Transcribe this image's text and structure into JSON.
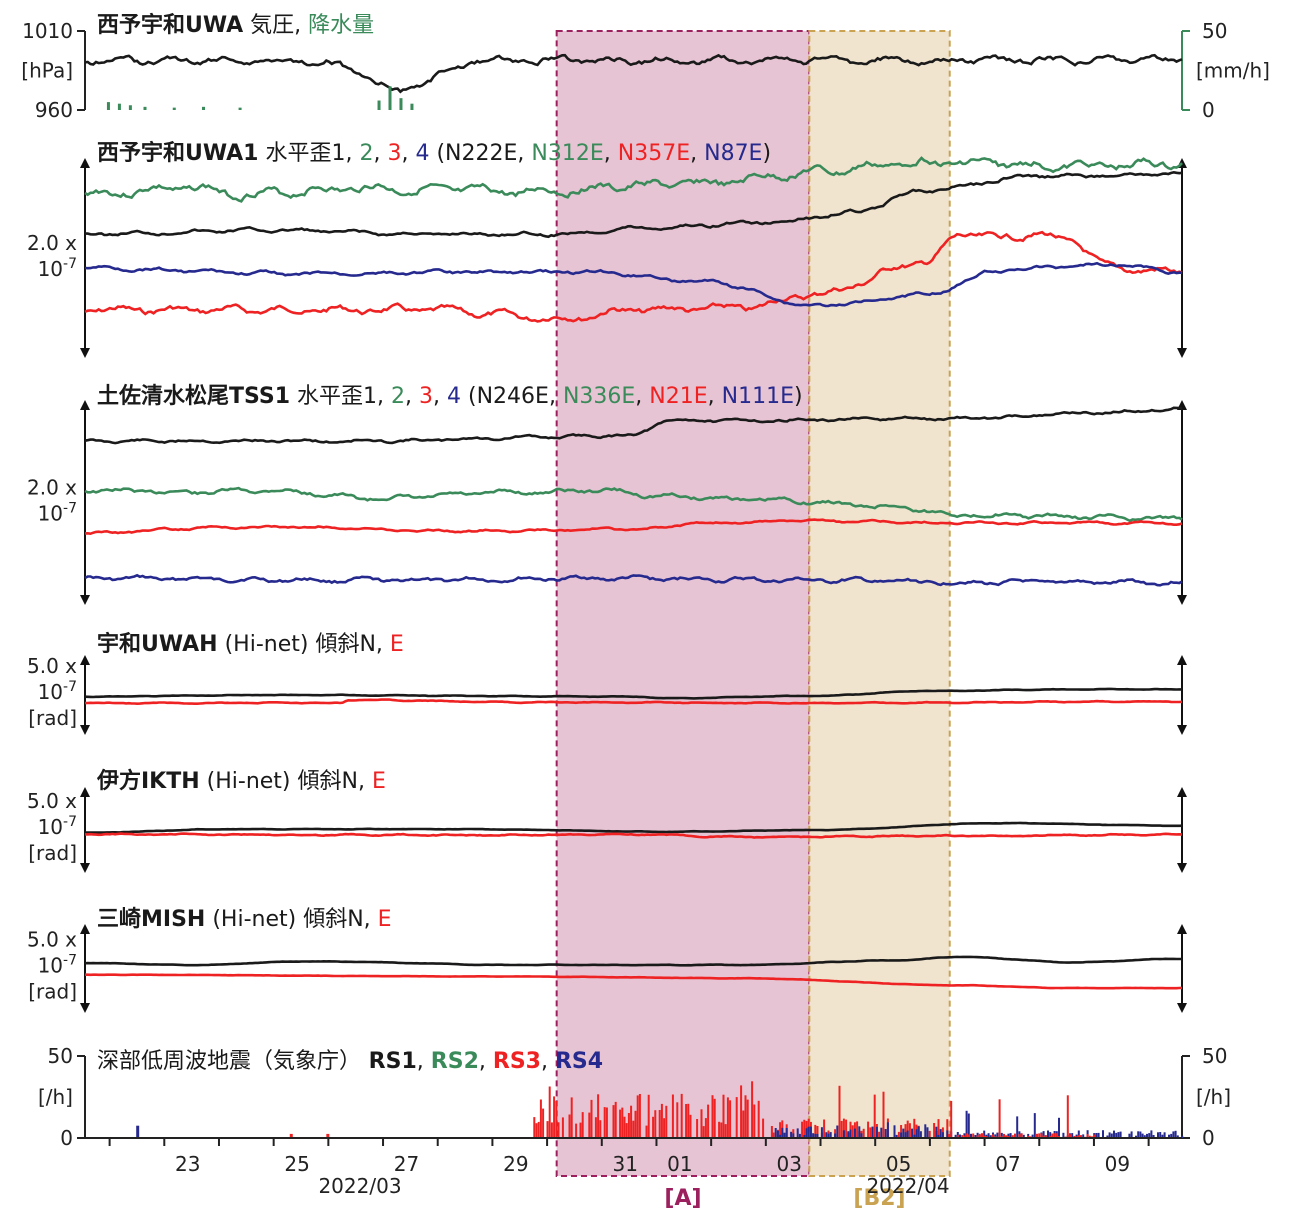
{
  "colors": {
    "black": "#1a1a1a",
    "green": "#3a8a5a",
    "red": "#ee2222",
    "blue": "#262a8e",
    "region_a_fill": "#e7c4d3",
    "region_a_border": "#9c1f5e",
    "region_b2_fill": "#f1e4cf",
    "region_b2_border": "#c9a352"
  },
  "chart_data": [
    {
      "type": "line",
      "id": "p0",
      "title_parts": [
        {
          "text": "西予宇和UWA",
          "color": "black",
          "bold": true
        },
        {
          "text": " 気圧,",
          "color": "black"
        },
        {
          "text": "  降水量",
          "color": "green"
        }
      ],
      "y_left": {
        "unit": "[hPa]",
        "ticks": [
          "1010",
          "960"
        ],
        "range": [
          960,
          1010
        ]
      },
      "y_right": {
        "unit": "[mm/h]",
        "ticks": [
          "50",
          "0"
        ],
        "range": [
          0,
          50
        ]
      },
      "series": [
        {
          "color": "black",
          "base": 0.37,
          "amp": 0.05,
          "seed": 1,
          "bumps": [
            [
              4.3,
              1.0,
              0.42
            ]
          ],
          "values_hpa_approx": [
            1001,
            1002,
            998,
            1001,
            997,
            985,
            998,
            1004,
            1003,
            1001,
            1006,
            1005,
            1003,
            1004,
            1005,
            1003,
            1004,
            1003,
            1002,
            1002
          ]
        },
        {
          "color": "black_placeholder"
        }
      ],
      "bars": [
        {
          "color": "green",
          "positions": [
            0.3,
            0.45,
            0.6,
            0.8,
            1.2,
            1.6,
            2.1,
            4.0,
            4.15,
            4.3,
            4.45
          ],
          "heights": [
            0.1,
            0.08,
            0.06,
            0.04,
            0.03,
            0.04,
            0.03,
            0.12,
            0.3,
            0.15,
            0.08
          ]
        }
      ]
    },
    {
      "type": "line",
      "id": "p1",
      "title_parts": [
        {
          "text": "西予宇和UWA1",
          "color": "black",
          "bold": true
        },
        {
          "text": " 水平歪1, ",
          "color": "black"
        },
        {
          "text": "2",
          "color": "green"
        },
        {
          "text": ", ",
          "color": "black"
        },
        {
          "text": "3",
          "color": "red"
        },
        {
          "text": ", ",
          "color": "black"
        },
        {
          "text": "4",
          "color": "blue"
        },
        {
          "text": " (N222E, ",
          "color": "black"
        },
        {
          "text": "N312E",
          "color": "green"
        },
        {
          "text": ", ",
          "color": "black"
        },
        {
          "text": "N357E",
          "color": "red"
        },
        {
          "text": ", ",
          "color": "black"
        },
        {
          "text": "N87E",
          "color": "blue"
        },
        {
          "text": ")",
          "color": "black"
        }
      ],
      "scale": {
        "line1": "2.0 x",
        "line2": "10",
        "exp": "-7"
      },
      "series": [
        {
          "color": "green",
          "base": 0.18,
          "amp": 0.025,
          "seed": 3,
          "pts": [
            [
              0,
              0.18
            ],
            [
              1.5,
              0.15
            ],
            [
              2.0,
              0.18
            ],
            [
              4.0,
              0.15
            ],
            [
              4.5,
              0.16
            ],
            [
              5.5,
              0.17
            ],
            [
              8.5,
              0.13
            ],
            [
              10,
              0.07
            ],
            [
              11.5,
              0.02
            ],
            [
              13.5,
              0.04
            ],
            [
              15,
              0.03
            ]
          ]
        },
        {
          "color": "black",
          "base": 0.39,
          "amp": 0.01,
          "seed": 5,
          "pts": [
            [
              0,
              0.38
            ],
            [
              2.5,
              0.36
            ],
            [
              4.5,
              0.38
            ],
            [
              6.5,
              0.38
            ],
            [
              7.5,
              0.35
            ],
            [
              9.5,
              0.32
            ],
            [
              10.5,
              0.27
            ],
            [
              11.5,
              0.16
            ],
            [
              13,
              0.09
            ],
            [
              15,
              0.08
            ]
          ]
        },
        {
          "color": "red",
          "base": 0.76,
          "amp": 0.02,
          "seed": 7,
          "pts": [
            [
              0,
              0.76
            ],
            [
              4.5,
              0.76
            ],
            [
              6.5,
              0.8
            ],
            [
              7.5,
              0.76
            ],
            [
              9,
              0.75
            ],
            [
              10,
              0.68
            ],
            [
              11.5,
              0.52
            ],
            [
              12.0,
              0.38
            ],
            [
              12.5,
              0.4
            ],
            [
              13.0,
              0.38
            ],
            [
              13.5,
              0.42
            ],
            [
              14,
              0.55
            ],
            [
              15,
              0.57
            ]
          ]
        },
        {
          "color": "blue",
          "base": 0.56,
          "amp": 0.01,
          "seed": 9,
          "pts": [
            [
              0,
              0.55
            ],
            [
              3,
              0.58
            ],
            [
              5,
              0.57
            ],
            [
              7,
              0.57
            ],
            [
              8.5,
              0.62
            ],
            [
              10,
              0.74
            ],
            [
              11.5,
              0.68
            ],
            [
              12.5,
              0.56
            ],
            [
              14,
              0.53
            ],
            [
              15,
              0.57
            ]
          ]
        }
      ]
    },
    {
      "type": "line",
      "id": "p2",
      "title_parts": [
        {
          "text": "土佐清水松尾TSS1",
          "color": "black",
          "bold": true
        },
        {
          "text": " 水平歪1, ",
          "color": "black"
        },
        {
          "text": "2",
          "color": "green"
        },
        {
          "text": ", ",
          "color": "black"
        },
        {
          "text": "3",
          "color": "red"
        },
        {
          "text": ", ",
          "color": "black"
        },
        {
          "text": "4",
          "color": "blue"
        },
        {
          "text": " (N246E, ",
          "color": "black"
        },
        {
          "text": "N336E",
          "color": "green"
        },
        {
          "text": ", ",
          "color": "black"
        },
        {
          "text": "N21E",
          "color": "red"
        },
        {
          "text": ", ",
          "color": "black"
        },
        {
          "text": "N111E",
          "color": "blue"
        },
        {
          "text": ")",
          "color": "black"
        }
      ],
      "scale": {
        "line1": "2.0 x",
        "line2": "10",
        "exp": "-7"
      },
      "series": [
        {
          "color": "black",
          "base": 0.2,
          "amp": 0.008,
          "seed": 11,
          "pts": [
            [
              0,
              0.2
            ],
            [
              4,
              0.2
            ],
            [
              6.5,
              0.18
            ],
            [
              7.5,
              0.17
            ],
            [
              8,
              0.1
            ],
            [
              9,
              0.1
            ],
            [
              12,
              0.09
            ],
            [
              14,
              0.06
            ],
            [
              15,
              0.04
            ]
          ]
        },
        {
          "color": "green",
          "base": 0.45,
          "amp": 0.012,
          "seed": 13,
          "pts": [
            [
              0,
              0.44
            ],
            [
              1.5,
              0.45
            ],
            [
              2.5,
              0.44
            ],
            [
              4,
              0.48
            ],
            [
              6,
              0.45
            ],
            [
              7,
              0.44
            ],
            [
              8,
              0.47
            ],
            [
              9.5,
              0.49
            ],
            [
              11,
              0.52
            ],
            [
              12,
              0.56
            ],
            [
              13.5,
              0.57
            ],
            [
              15,
              0.58
            ]
          ]
        },
        {
          "color": "red",
          "base": 0.64,
          "amp": 0.006,
          "seed": 15,
          "pts": [
            [
              0,
              0.65
            ],
            [
              2,
              0.62
            ],
            [
              3,
              0.62
            ],
            [
              5,
              0.64
            ],
            [
              7.5,
              0.63
            ],
            [
              8.5,
              0.6
            ],
            [
              10,
              0.59
            ],
            [
              12,
              0.6
            ],
            [
              15,
              0.6
            ]
          ]
        },
        {
          "color": "blue",
          "base": 0.87,
          "amp": 0.012,
          "seed": 17,
          "pts": [
            [
              0,
              0.87
            ],
            [
              4,
              0.88
            ],
            [
              7,
              0.87
            ],
            [
              10,
              0.88
            ],
            [
              12,
              0.89
            ],
            [
              15,
              0.89
            ]
          ]
        }
      ]
    },
    {
      "type": "line",
      "id": "p3",
      "title_parts": [
        {
          "text": "宇和UWAH",
          "color": "black",
          "bold": true
        },
        {
          "text": " (Hi-net) 傾斜N, ",
          "color": "black"
        },
        {
          "text": "E",
          "color": "red"
        }
      ],
      "scale": {
        "line1": "5.0 x",
        "line2": "10",
        "exp": "-7",
        "unit": "[rad]"
      },
      "series": [
        {
          "color": "black",
          "base": 0.5,
          "amp": 0.004,
          "seed": 19,
          "pts": [
            [
              0,
              0.52
            ],
            [
              2.5,
              0.5
            ],
            [
              7.5,
              0.52
            ],
            [
              8,
              0.54
            ],
            [
              10,
              0.51
            ],
            [
              11.5,
              0.45
            ],
            [
              13.5,
              0.43
            ],
            [
              15,
              0.43
            ]
          ]
        },
        {
          "color": "red",
          "base": 0.59,
          "amp": 0.006,
          "seed": 21,
          "pts": [
            [
              0,
              0.6
            ],
            [
              3.5,
              0.6
            ],
            [
              3.6,
              0.56
            ],
            [
              6,
              0.59
            ],
            [
              10,
              0.6
            ],
            [
              15,
              0.58
            ]
          ]
        }
      ]
    },
    {
      "type": "line",
      "id": "p4",
      "title_parts": [
        {
          "text": "伊方IKTH",
          "color": "black",
          "bold": true
        },
        {
          "text": " (Hi-net) 傾斜N, ",
          "color": "black"
        },
        {
          "text": "E",
          "color": "red"
        }
      ],
      "scale": {
        "line1": "5.0 x",
        "line2": "10",
        "exp": "-7",
        "unit": "[rad]"
      },
      "series": [
        {
          "color": "black",
          "base": 0.5,
          "amp": 0.003,
          "seed": 23,
          "pts": [
            [
              0,
              0.53
            ],
            [
              2,
              0.49
            ],
            [
              5,
              0.49
            ],
            [
              8,
              0.52
            ],
            [
              10,
              0.5
            ],
            [
              12.5,
              0.42
            ],
            [
              15,
              0.45
            ]
          ]
        },
        {
          "color": "red",
          "base": 0.55,
          "amp": 0.008,
          "seed": 25,
          "pts": [
            [
              0,
              0.55
            ],
            [
              5,
              0.56
            ],
            [
              7.5,
              0.55
            ],
            [
              9,
              0.58
            ],
            [
              12,
              0.57
            ],
            [
              15,
              0.55
            ]
          ]
        }
      ]
    },
    {
      "type": "line",
      "id": "p5",
      "title_parts": [
        {
          "text": "三崎MISH",
          "color": "black",
          "bold": true
        },
        {
          "text": " (Hi-net) 傾斜N, ",
          "color": "black"
        },
        {
          "text": "E",
          "color": "red"
        }
      ],
      "scale": {
        "line1": "5.0 x",
        "line2": "10",
        "exp": "-7",
        "unit": "[rad]"
      },
      "series": [
        {
          "color": "black",
          "base": 0.5,
          "amp": 0.003,
          "seed": 27,
          "pts": [
            [
              0,
              0.44
            ],
            [
              1.5,
              0.46
            ],
            [
              3,
              0.42
            ],
            [
              6,
              0.46
            ],
            [
              9,
              0.46
            ],
            [
              11,
              0.41
            ],
            [
              12,
              0.37
            ],
            [
              13.5,
              0.43
            ],
            [
              15,
              0.39
            ]
          ]
        },
        {
          "color": "red",
          "base": 0.58,
          "amp": 0.002,
          "seed": 29,
          "pts": [
            [
              0,
              0.57
            ],
            [
              6,
              0.59
            ],
            [
              9,
              0.61
            ],
            [
              12,
              0.69
            ],
            [
              13.5,
              0.72
            ],
            [
              15,
              0.72
            ]
          ]
        }
      ]
    },
    {
      "type": "bar",
      "id": "p6",
      "title_parts": [
        {
          "text": "深部低周波地震（気象庁）",
          "color": "black"
        },
        {
          "text": "  RS1",
          "color": "black",
          "bold": true
        },
        {
          "text": ", ",
          "color": "black"
        },
        {
          "text": "RS2",
          "color": "green",
          "bold": true
        },
        {
          "text": ", ",
          "color": "black"
        },
        {
          "text": "RS3",
          "color": "red",
          "bold": true
        },
        {
          "text": ", ",
          "color": "black"
        },
        {
          "text": "RS4",
          "color": "blue",
          "bold": true
        }
      ],
      "y_left": {
        "unit": "[/h]",
        "ticks": [
          "50",
          "0"
        ],
        "range": [
          0,
          50
        ]
      },
      "y_right": {
        "unit": "[/h]",
        "ticks": [
          "50",
          "0"
        ],
        "range": [
          0,
          50
        ]
      },
      "bursts": [
        {
          "color": "red",
          "from": 6.1,
          "to": 9.4,
          "level": 0.45,
          "peak": 0.82
        },
        {
          "color": "red",
          "from": 9.4,
          "to": 11.8,
          "level": 0.2,
          "peak": 0.7
        },
        {
          "color": "blue",
          "from": 9.4,
          "to": 11.8,
          "level": 0.12,
          "peak": 0.2
        },
        {
          "color": "blue",
          "from": 11.8,
          "to": 15,
          "level": 0.08,
          "peak": 0.35
        },
        {
          "color": "red",
          "from": 11.8,
          "to": 13.8,
          "level": 0.05,
          "peak": 0.55
        }
      ],
      "singles": [
        {
          "color": "blue",
          "x": 0.7,
          "h": 0.15
        },
        {
          "color": "red",
          "x": 2.8,
          "h": 0.05
        },
        {
          "color": "red",
          "x": 3.3,
          "h": 0.05
        }
      ]
    }
  ],
  "x_axis": {
    "day_ticks": [
      {
        "label": "23",
        "d": 1.0
      },
      {
        "label": "25",
        "d": 3.0
      },
      {
        "label": "27",
        "d": 5.0
      },
      {
        "label": "29",
        "d": 7.0
      },
      {
        "label": "31",
        "d": 9.0
      },
      {
        "label": "01",
        "d": 10.0
      },
      {
        "label": "03",
        "d": 12.0
      },
      {
        "label": "05",
        "d": 14.0
      },
      {
        "label": "07",
        "d": 16.0
      },
      {
        "label": "09",
        "d": 18.0
      }
    ],
    "month_labels": [
      "2022/03",
      "2022/04"
    ],
    "span_days": 20
  },
  "regions": [
    {
      "label": "[A]",
      "from": 8.4,
      "to": 12.9,
      "color": "region_a"
    },
    {
      "label": "[B2]",
      "from": 12.9,
      "to": 15.4,
      "color": "region_b2"
    }
  ]
}
